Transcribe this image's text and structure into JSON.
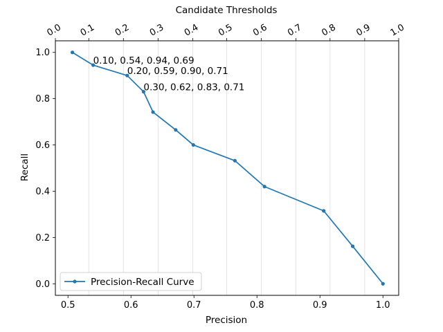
{
  "chart_data": {
    "type": "line",
    "xlabel": "Precision",
    "ylabel": "Recall",
    "top_xlabel": "Candidate Thresholds",
    "xlim": [
      0.48,
      1.025
    ],
    "ylim": [
      -0.05,
      1.05
    ],
    "x_ticks": [
      0.5,
      0.6,
      0.7,
      0.8,
      0.9,
      1.0
    ],
    "x_tick_labels": [
      "0.5",
      "0.6",
      "0.7",
      "0.8",
      "0.9",
      "1.0"
    ],
    "y_ticks": [
      0.0,
      0.2,
      0.4,
      0.6,
      0.8,
      1.0
    ],
    "y_tick_labels": [
      "0.0",
      "0.2",
      "0.4",
      "0.6",
      "0.8",
      "1.0"
    ],
    "top_ticks": [
      0.507,
      0.54,
      0.594,
      0.62,
      0.635,
      0.671,
      0.699,
      0.765,
      0.812,
      0.906,
      0.952,
      1.0
    ],
    "top_tick_labels": [
      "0.0",
      "0.1",
      "0.2",
      "0.3",
      "0.4",
      "0.5",
      "0.6",
      "0.7",
      "0.8",
      "0.9",
      "1.0"
    ],
    "top_tick_positions": [
      0.48,
      0.533,
      0.588,
      0.643,
      0.698,
      0.752,
      0.807,
      0.862,
      0.916,
      0.971,
      1.025
    ],
    "grid": "vertical",
    "legend": "lower-left",
    "series": [
      {
        "name": "Precision-Recall Curve",
        "color": "#1f77b4",
        "x": [
          0.507,
          0.54,
          0.594,
          0.62,
          0.635,
          0.671,
          0.699,
          0.765,
          0.812,
          0.906,
          0.952,
          1.0
        ],
        "y": [
          1.0,
          0.945,
          0.9,
          0.83,
          0.742,
          0.665,
          0.6,
          0.532,
          0.42,
          0.315,
          0.162,
          0.0
        ]
      }
    ],
    "annotations": [
      {
        "text": "0.10, 0.54, 0.94, 0.69",
        "x": 0.54,
        "y": 0.945
      },
      {
        "text": "0.20, 0.59, 0.90, 0.71",
        "x": 0.594,
        "y": 0.9
      },
      {
        "text": "0.30, 0.62, 0.83, 0.71",
        "x": 0.62,
        "y": 0.83
      }
    ]
  }
}
